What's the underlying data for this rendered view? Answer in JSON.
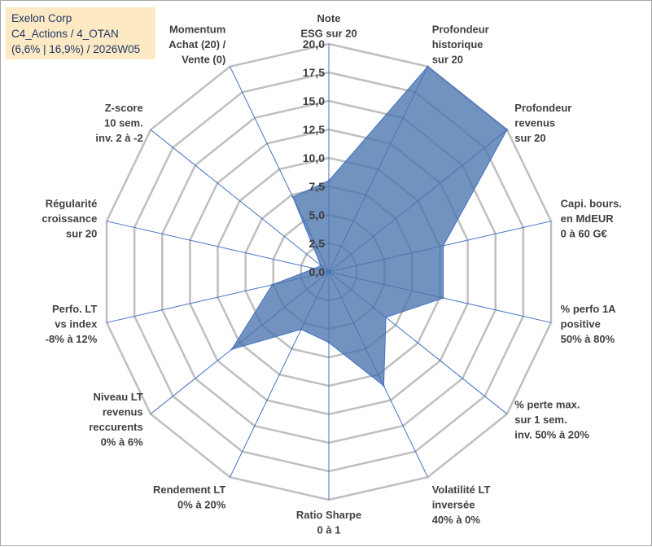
{
  "info_box": {
    "line1": "Exelon Corp",
    "line2": "C4_Actions / 4_OTAN",
    "line3": "(6,6% | 16,9%) / 2026W05"
  },
  "colors": {
    "fill": "#4a74ad",
    "edge": "#4472c4",
    "grid": "#bfbfbf",
    "spoke": "#4472c4",
    "info_bg": "#fde9c4",
    "info_text": "#1f3864"
  },
  "chart_data": {
    "type": "radar",
    "title": "",
    "rmin": 0,
    "rmax": 20,
    "tick_step": 2.5,
    "tick_labels": [
      "0,0",
      "2,5",
      "5,0",
      "7,5",
      "10,0",
      "12,5",
      "15,0",
      "17,5",
      "20,0"
    ],
    "axes": [
      [
        "Note",
        "ESG sur 20"
      ],
      [
        "Profondeur",
        "historique",
        "sur 20"
      ],
      [
        "Profondeur",
        "revenus",
        "sur 20"
      ],
      [
        "Capi. bours.",
        "en MdEUR",
        "0 à 60 G€"
      ],
      [
        "% perfo 1A",
        "positive",
        "50% à 80%"
      ],
      [
        "% perte max.",
        "sur 1 sem.",
        "inv. 50% à 20%"
      ],
      [
        "Volatilité LT",
        "inversée",
        "40% à 0%"
      ],
      [
        "Ratio Sharpe",
        "0 à 1"
      ],
      [
        "Rendement LT",
        "0% à 20%"
      ],
      [
        "Niveau LT",
        "revenus",
        "reccurents",
        "0% à 6%"
      ],
      [
        "Perfo. LT",
        "vs index",
        "-8% à 12%"
      ],
      [
        "Régularité",
        "croissance",
        "sur 20"
      ],
      [
        "Z-score",
        "10 sem.",
        "inv. 2 à -2"
      ],
      [
        "Momentum",
        "Achat (20) /",
        "Vente (0)"
      ]
    ],
    "series": [
      {
        "name": "Exelon Corp",
        "values": [
          8.0,
          20.0,
          20.0,
          10.3,
          10.3,
          6.4,
          11.1,
          6.2,
          5.6,
          10.9,
          5.1,
          1.3,
          0.9,
          7.3
        ]
      }
    ]
  }
}
